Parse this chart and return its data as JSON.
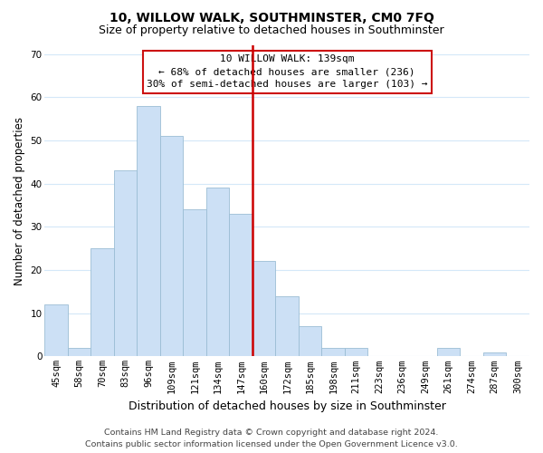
{
  "title": "10, WILLOW WALK, SOUTHMINSTER, CM0 7FQ",
  "subtitle": "Size of property relative to detached houses in Southminster",
  "xlabel": "Distribution of detached houses by size in Southminster",
  "ylabel": "Number of detached properties",
  "bar_color": "#cce0f5",
  "bar_edge_color": "#9bbdd4",
  "categories": [
    "45sqm",
    "58sqm",
    "70sqm",
    "83sqm",
    "96sqm",
    "109sqm",
    "121sqm",
    "134sqm",
    "147sqm",
    "160sqm",
    "172sqm",
    "185sqm",
    "198sqm",
    "211sqm",
    "223sqm",
    "236sqm",
    "249sqm",
    "261sqm",
    "274sqm",
    "287sqm",
    "300sqm"
  ],
  "values": [
    12,
    2,
    25,
    43,
    58,
    51,
    34,
    39,
    33,
    22,
    14,
    7,
    2,
    2,
    0,
    0,
    0,
    2,
    0,
    1,
    0
  ],
  "ylim": [
    0,
    72
  ],
  "yticks": [
    0,
    10,
    20,
    30,
    40,
    50,
    60,
    70
  ],
  "vline_x": 8.5,
  "vline_color": "#cc0000",
  "annotation_title": "10 WILLOW WALK: 139sqm",
  "annotation_line1": "← 68% of detached houses are smaller (236)",
  "annotation_line2": "30% of semi-detached houses are larger (103) →",
  "annotation_box_color": "#ffffff",
  "annotation_box_edge": "#cc1111",
  "footer1": "Contains HM Land Registry data © Crown copyright and database right 2024.",
  "footer2": "Contains public sector information licensed under the Open Government Licence v3.0.",
  "background_color": "#ffffff",
  "grid_color": "#d4e8f8",
  "title_fontsize": 10,
  "subtitle_fontsize": 9,
  "xlabel_fontsize": 9,
  "ylabel_fontsize": 8.5,
  "tick_fontsize": 7.5,
  "annotation_fontsize": 8,
  "footer_fontsize": 6.8
}
